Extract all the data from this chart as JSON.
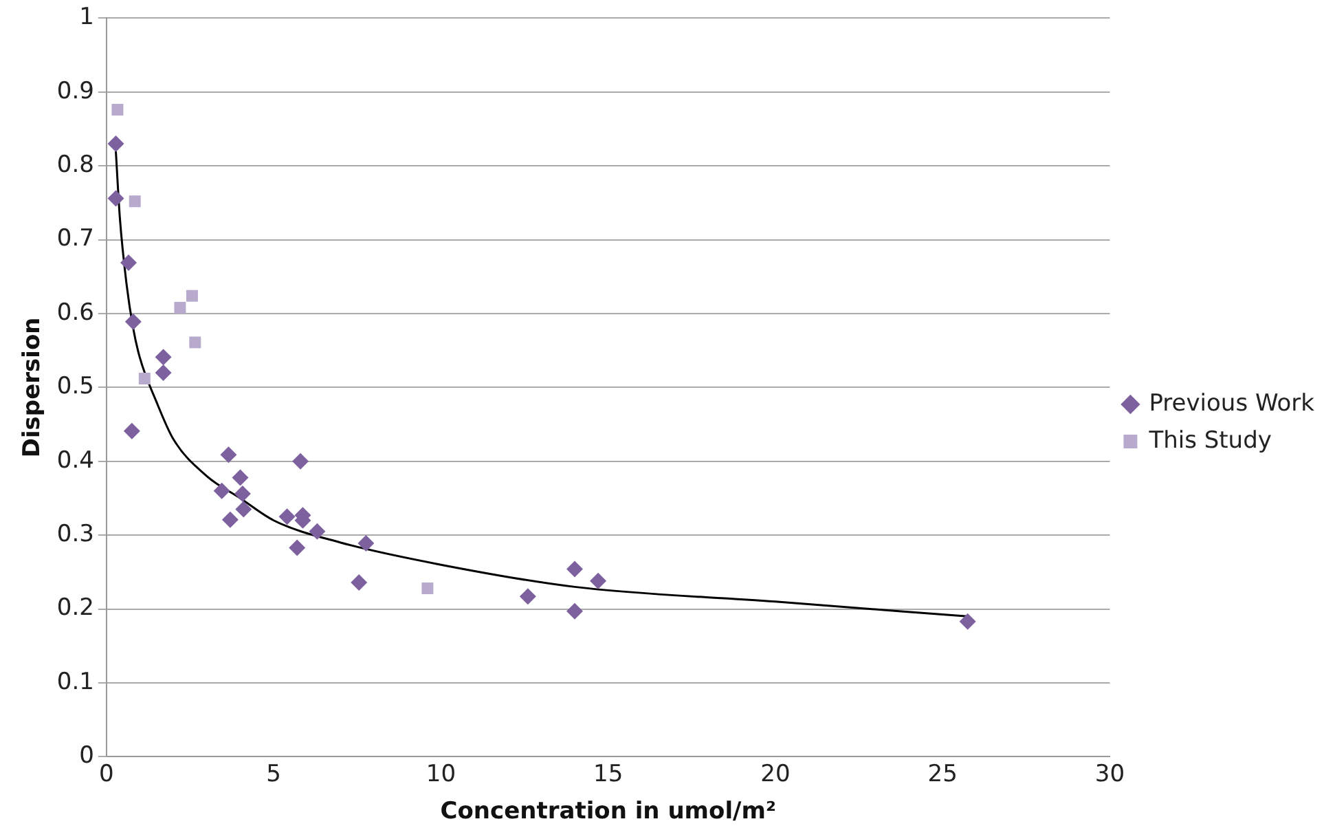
{
  "chart_data": {
    "type": "scatter",
    "xlabel": "Concentration in umol/m²",
    "ylabel": "Dispersion",
    "xlim": [
      0,
      30
    ],
    "xticks": [
      0,
      5,
      10,
      15,
      20,
      25,
      30
    ],
    "ylim": [
      0,
      1
    ],
    "yticks": [
      0,
      0.1,
      0.2,
      0.3,
      0.4,
      0.5,
      0.6,
      0.7,
      0.8,
      0.9,
      1
    ],
    "grid": "y",
    "legend": "right",
    "series": [
      {
        "name": "Previous Work",
        "marker": "diamond",
        "color": "#7d619f",
        "x": [
          0.28,
          0.28,
          0.66,
          0.8,
          0.76,
          1.7,
          1.7,
          3.65,
          4.0,
          3.45,
          4.07,
          3.7,
          4.1,
          5.8,
          5.4,
          5.87,
          5.87,
          6.3,
          5.7,
          7.76,
          7.55,
          14.0,
          14.7,
          12.6,
          14.0,
          25.75
        ],
        "values": [
          0.83,
          0.756,
          0.669,
          0.589,
          0.441,
          0.541,
          0.52,
          0.409,
          0.378,
          0.36,
          0.356,
          0.321,
          0.335,
          0.4,
          0.325,
          0.327,
          0.32,
          0.305,
          0.283,
          0.289,
          0.236,
          0.254,
          0.238,
          0.217,
          0.197,
          0.183
        ]
      },
      {
        "name": "This Study",
        "marker": "square",
        "color": "#b8aacd",
        "x": [
          0.33,
          0.85,
          2.2,
          2.56,
          2.65,
          1.14,
          9.6
        ],
        "values": [
          0.876,
          0.752,
          0.608,
          0.624,
          0.561,
          0.512,
          0.228
        ]
      },
      {
        "type": "line",
        "marker": "none",
        "color": "#000000",
        "x": [
          0.28,
          0.4,
          0.6,
          0.8,
          1,
          1.5,
          2,
          3,
          4,
          5,
          7,
          10,
          14,
          20,
          25.75
        ],
        "values": [
          0.82,
          0.73,
          0.64,
          0.58,
          0.54,
          0.48,
          0.43,
          0.38,
          0.35,
          0.32,
          0.29,
          0.26,
          0.23,
          0.21,
          0.19
        ]
      }
    ]
  }
}
